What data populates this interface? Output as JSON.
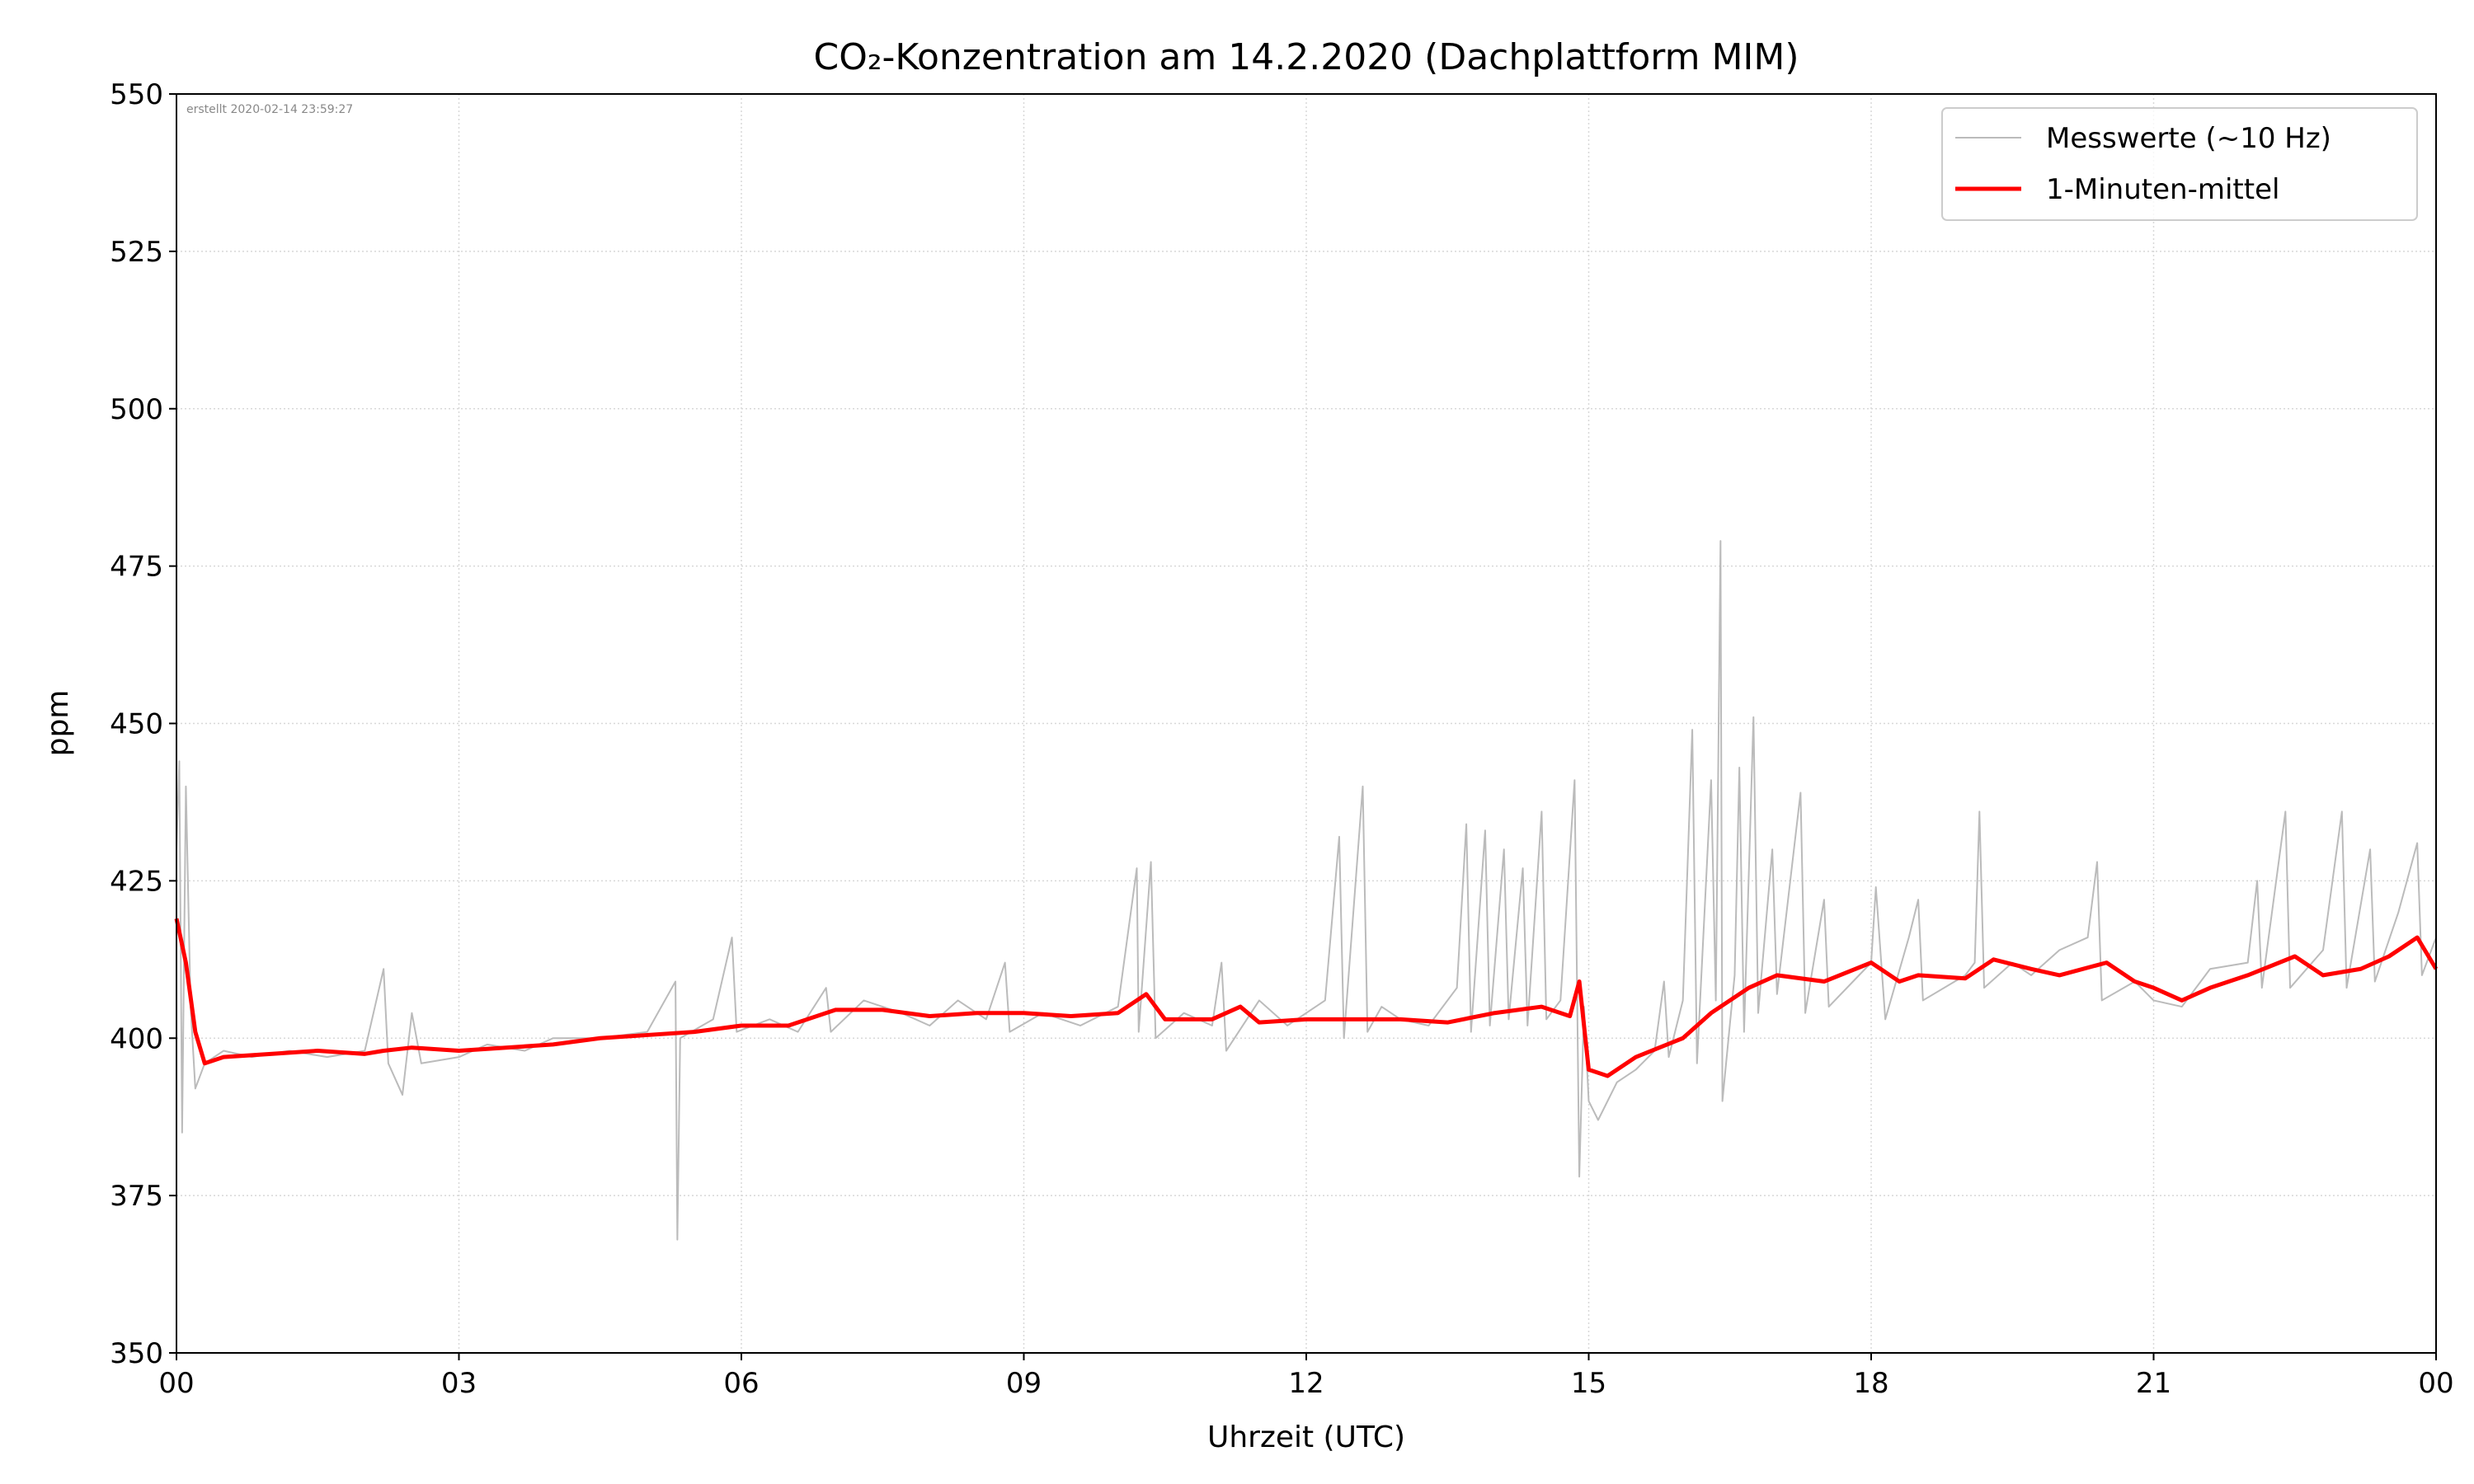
{
  "chart_data": {
    "type": "line",
    "title": "CO₂-Konzentration am 14.2.2020 (Dachplattform MIM)",
    "xlabel": "Uhrzeit (UTC)",
    "ylabel": "ppm",
    "annotation": "erstellt 2020-02-14 23:59:27",
    "xlim": [
      0,
      24
    ],
    "ylim": [
      350,
      550
    ],
    "xticks": [
      {
        "value": 0,
        "label": "00"
      },
      {
        "value": 3,
        "label": "03"
      },
      {
        "value": 6,
        "label": "06"
      },
      {
        "value": 9,
        "label": "09"
      },
      12,
      15,
      18,
      21,
      {
        "value": 24,
        "label": "00"
      }
    ],
    "yticks": [
      350,
      375,
      400,
      425,
      450,
      475,
      500,
      525,
      550
    ],
    "grid": true,
    "legend": "upper right",
    "series": [
      {
        "name": "Messwerte (~10 Hz)",
        "color": "#bbbbbb",
        "x": [
          0,
          0.03,
          0.06,
          0.1,
          0.15,
          0.2,
          0.3,
          0.5,
          0.8,
          1.2,
          1.6,
          2.0,
          2.2,
          2.25,
          2.4,
          2.5,
          2.6,
          3,
          3.3,
          3.7,
          4,
          4.5,
          5,
          5.3,
          5.32,
          5.35,
          5.7,
          5.9,
          5.95,
          6.3,
          6.6,
          6.9,
          6.95,
          7.3,
          7.7,
          8,
          8.3,
          8.6,
          8.8,
          8.85,
          9.2,
          9.6,
          10,
          10.2,
          10.22,
          10.35,
          10.4,
          10.7,
          11,
          11.1,
          11.15,
          11.5,
          11.8,
          12.2,
          12.35,
          12.4,
          12.6,
          12.65,
          12.8,
          13,
          13.3,
          13.6,
          13.7,
          13.75,
          13.9,
          13.95,
          14.1,
          14.15,
          14.3,
          14.35,
          14.5,
          14.55,
          14.7,
          14.85,
          14.9,
          14.95,
          15,
          15.1,
          15.3,
          15.5,
          15.7,
          15.8,
          15.85,
          16,
          16.1,
          16.15,
          16.3,
          16.35,
          16.4,
          16.42,
          16.55,
          16.6,
          16.65,
          16.75,
          16.8,
          16.95,
          17,
          17.25,
          17.3,
          17.5,
          17.55,
          18,
          18.05,
          18.15,
          18.4,
          18.5,
          18.55,
          19,
          19.1,
          19.15,
          19.2,
          19.5,
          19.7,
          20,
          20.3,
          20.4,
          20.45,
          20.8,
          21,
          21.3,
          21.6,
          22,
          22.1,
          22.15,
          22.4,
          22.45,
          22.8,
          23,
          23.05,
          23.3,
          23.35,
          23.6,
          23.8,
          23.85,
          24
        ],
        "values": [
          430,
          444,
          385,
          440,
          405,
          392,
          396,
          398,
          397,
          398,
          397,
          398,
          411,
          396,
          391,
          404,
          396,
          397,
          399,
          398,
          400,
          400,
          401,
          409,
          368,
          400,
          403,
          416,
          401,
          403,
          401,
          408,
          401,
          406,
          404,
          402,
          406,
          403,
          412,
          401,
          404,
          402,
          405,
          427,
          401,
          428,
          400,
          404,
          402,
          412,
          398,
          406,
          402,
          406,
          432,
          400,
          440,
          401,
          405,
          403,
          402,
          408,
          434,
          401,
          433,
          402,
          430,
          403,
          427,
          402,
          436,
          403,
          406,
          441,
          378,
          405,
          390,
          387,
          393,
          395,
          398,
          409,
          397,
          406,
          449,
          396,
          441,
          406,
          479,
          390,
          410,
          443,
          401,
          451,
          404,
          430,
          407,
          439,
          404,
          422,
          405,
          412,
          424,
          403,
          416,
          422,
          406,
          410,
          412,
          436,
          408,
          412,
          410,
          414,
          416,
          428,
          406,
          409,
          406,
          405,
          411,
          412,
          425,
          408,
          436,
          408,
          414,
          436,
          408,
          430,
          409,
          420,
          431,
          410,
          416
        ]
      },
      {
        "name": "1-Minuten-mittel",
        "color": "#ff0000",
        "x": [
          0,
          0.1,
          0.2,
          0.3,
          0.5,
          1,
          1.5,
          2,
          2.2,
          2.5,
          3,
          3.5,
          4,
          4.5,
          5,
          5.5,
          6,
          6.5,
          7,
          7.5,
          8,
          8.5,
          9,
          9.5,
          10,
          10.3,
          10.5,
          11,
          11.3,
          11.5,
          12,
          12.5,
          13,
          13.5,
          14,
          14.5,
          14.8,
          14.9,
          15,
          15.2,
          15.5,
          16,
          16.3,
          16.7,
          17,
          17.5,
          18,
          18.3,
          18.5,
          19,
          19.3,
          19.7,
          20,
          20.5,
          20.8,
          21,
          21.3,
          21.6,
          22,
          22.5,
          22.8,
          23.2,
          23.5,
          23.8,
          24
        ],
        "values": [
          419,
          412,
          401,
          396,
          397,
          397.5,
          398,
          397.5,
          398,
          398.5,
          398,
          398.5,
          399,
          400,
          400.5,
          401,
          402,
          402,
          404.5,
          404.5,
          403.5,
          404,
          404,
          403.5,
          404,
          407,
          403,
          403,
          405,
          402.5,
          403,
          403,
          403,
          402.5,
          404,
          405,
          403.5,
          409,
          395,
          394,
          397,
          400,
          404,
          408,
          410,
          409,
          412,
          409,
          410,
          409.5,
          412.5,
          411,
          410,
          412,
          409,
          408,
          406,
          408,
          410,
          413,
          410,
          411,
          413,
          416,
          411
        ]
      }
    ]
  }
}
